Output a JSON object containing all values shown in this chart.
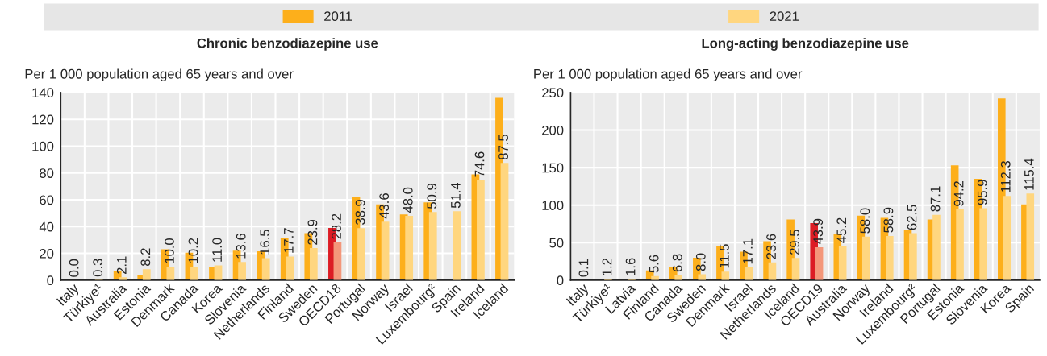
{
  "chart_data": [
    {
      "type": "bar",
      "title": "Chronic benzodiazepine use",
      "ylabel": "Per 1 000 population aged 65 years and over",
      "categories": [
        "Italy",
        "Türkiye¹",
        "Australia",
        "Estonia",
        "Denmark",
        "Canada",
        "Korea",
        "Slovenia",
        "Netherlands",
        "Finland",
        "Sweden",
        "OECD18",
        "Portugal",
        "Norway",
        "Israel",
        "Luxembourg²",
        "Spain",
        "Ireland",
        "Iceland"
      ],
      "series": [
        {
          "name": "2011",
          "color": "#fdaf1b",
          "colors": [
            "#fdaf1b",
            "#fdaf1b",
            "#fdaf1b",
            "#fdaf1b",
            "#fdaf1b",
            "#fdaf1b",
            "#fdaf1b",
            "#fdaf1b",
            "#fdaf1b",
            "#fdaf1b",
            "#fdaf1b",
            "#dc1c24",
            "#fdaf1b",
            "#fdaf1b",
            "#fdaf1b",
            "#fdaf1b",
            "#fdaf1b",
            "#fdaf1b",
            "#fdaf1b"
          ],
          "values": [
            null,
            null,
            7,
            4,
            23,
            20.5,
            9.5,
            22,
            21.5,
            31.5,
            35,
            39,
            62,
            56.5,
            49,
            58,
            null,
            79,
            136
          ]
        },
        {
          "name": "2021",
          "color": "#ffd67f",
          "colors": [
            "#ffd67f",
            "#ffd67f",
            "#ffd67f",
            "#ffd67f",
            "#ffd67f",
            "#ffd67f",
            "#ffd67f",
            "#ffd67f",
            "#ffd67f",
            "#ffd67f",
            "#ffd67f",
            "#f4977a",
            "#ffd67f",
            "#ffd67f",
            "#ffd67f",
            "#ffd67f",
            "#ffd67f",
            "#ffd67f",
            "#ffd67f"
          ],
          "values": [
            0.0,
            0.3,
            2.1,
            8.2,
            10.0,
            10.2,
            11.0,
            13.6,
            16.5,
            17.7,
            23.9,
            28.2,
            38.9,
            43.6,
            48.0,
            50.9,
            51.4,
            74.6,
            87.5
          ],
          "value_labels": [
            "0.0",
            "0.3",
            "2.1",
            "8.2",
            "10.0",
            "10.2",
            "11.0",
            "13.6",
            "16.5",
            "17.7",
            "23.9",
            "28.2",
            "38.9",
            "43.6",
            "48.0",
            "50.9",
            "51.4",
            "74.6",
            "87.5"
          ]
        }
      ],
      "ylim": [
        0,
        140
      ],
      "yticks": [
        0,
        20,
        40,
        60,
        80,
        100,
        120,
        140
      ],
      "grid": true,
      "legend": "top"
    },
    {
      "type": "bar",
      "title": "Long-acting benzodiazepine use",
      "ylabel": "Per 1 000 population aged 65 years and over",
      "categories": [
        "Italy",
        "Türkiye¹",
        "Latvia",
        "Finland",
        "Canada",
        "Sweden",
        "Denmark",
        "Israel",
        "Netherlands",
        "Iceland",
        "OECD19",
        "Australia",
        "Norway",
        "Ireland",
        "Luxembourg²",
        "Portugal",
        "Estonia",
        "Slovenia",
        "Korea",
        "Spain"
      ],
      "series": [
        {
          "name": "2011",
          "color": "#fdaf1b",
          "colors": [
            "#fdaf1b",
            "#fdaf1b",
            "#fdaf1b",
            "#fdaf1b",
            "#fdaf1b",
            "#fdaf1b",
            "#fdaf1b",
            "#fdaf1b",
            "#fdaf1b",
            "#fdaf1b",
            "#dc1c24",
            "#fdaf1b",
            "#fdaf1b",
            "#fdaf1b",
            "#fdaf1b",
            "#fdaf1b",
            "#fdaf1b",
            "#fdaf1b",
            "#fdaf1b",
            "#fdaf1b"
          ],
          "values": [
            null,
            1,
            null,
            13,
            18,
            30,
            46,
            38,
            52,
            81,
            76,
            62,
            86,
            83,
            67,
            81,
            153,
            135,
            242,
            101
          ]
        },
        {
          "name": "2021",
          "color": "#ffd67f",
          "colors": [
            "#ffd67f",
            "#ffd67f",
            "#ffd67f",
            "#ffd67f",
            "#ffd67f",
            "#ffd67f",
            "#ffd67f",
            "#ffd67f",
            "#ffd67f",
            "#ffd67f",
            "#f4977a",
            "#ffd67f",
            "#ffd67f",
            "#ffd67f",
            "#ffd67f",
            "#ffd67f",
            "#ffd67f",
            "#ffd67f",
            "#ffd67f",
            "#ffd67f"
          ],
          "values": [
            0.1,
            1.2,
            1.6,
            5.6,
            6.8,
            8.0,
            11.5,
            17.1,
            23.6,
            29.5,
            43.9,
            45.2,
            58.0,
            58.9,
            62.5,
            87.1,
            94.2,
            95.9,
            112.3,
            115.4
          ],
          "value_labels": [
            "0.1",
            "1.2",
            "1.6",
            "5.6",
            "6.8",
            "8.0",
            "11.5",
            "17.1",
            "23.6",
            "29.5",
            "43.9",
            "45.2",
            "58.0",
            "58.9",
            "62.5",
            "87.1",
            "94.2",
            "95.9",
            "112.3",
            "115.4"
          ]
        }
      ],
      "ylim": [
        0,
        250
      ],
      "yticks": [
        0,
        50,
        100,
        150,
        200,
        250
      ],
      "grid": true,
      "legend": "top"
    }
  ]
}
